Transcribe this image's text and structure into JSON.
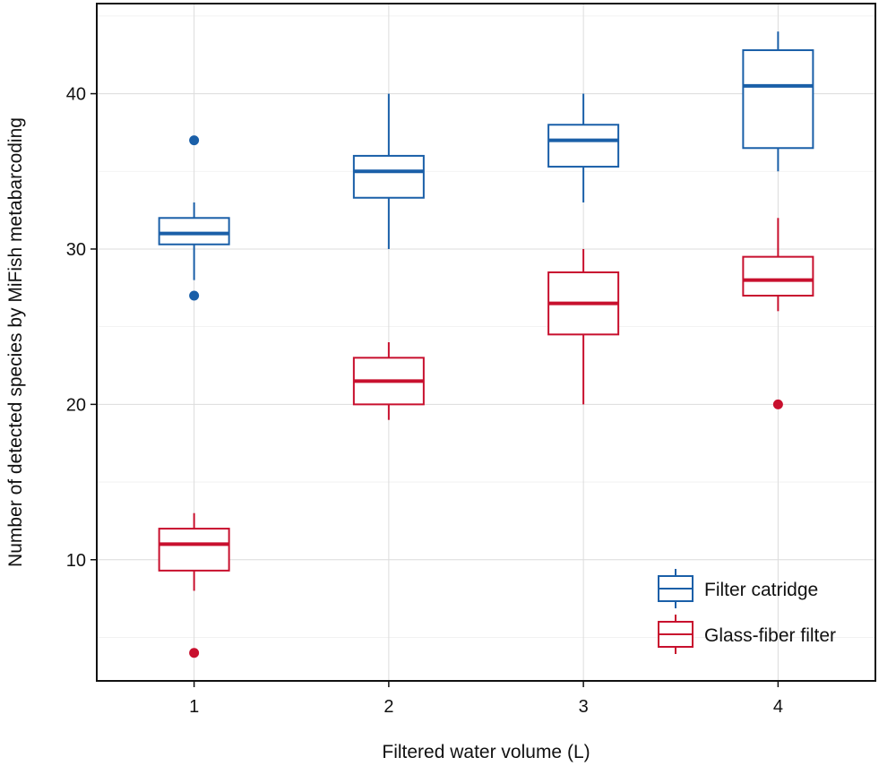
{
  "chart_data": {
    "type": "box",
    "xlabel": "Filtered water volume (L)",
    "ylabel": "Number of detected species by MiFish metabarcoding",
    "categories": [
      "1",
      "2",
      "3",
      "4"
    ],
    "ylim": [
      2.2,
      45.8
    ],
    "yticks": [
      10,
      20,
      30,
      40
    ],
    "grid": true,
    "legend_position": "bottom-right",
    "series": [
      {
        "name": "Filter catridge",
        "color": "#1a5fa8",
        "boxes": [
          {
            "x": "1",
            "whisker_low": 28,
            "q1": 30.3,
            "median": 31,
            "q3": 32,
            "whisker_high": 33,
            "outliers": [
              37,
              27
            ]
          },
          {
            "x": "2",
            "whisker_low": 30,
            "q1": 33.3,
            "median": 35,
            "q3": 36,
            "whisker_high": 40,
            "outliers": []
          },
          {
            "x": "3",
            "whisker_low": 33,
            "q1": 35.3,
            "median": 37,
            "q3": 38,
            "whisker_high": 40,
            "outliers": []
          },
          {
            "x": "4",
            "whisker_low": 35,
            "q1": 36.5,
            "median": 40.5,
            "q3": 42.8,
            "whisker_high": 44,
            "outliers": []
          }
        ]
      },
      {
        "name": "Glass-fiber filter",
        "color": "#c8102e",
        "boxes": [
          {
            "x": "1",
            "whisker_low": 8,
            "q1": 9.3,
            "median": 11,
            "q3": 12,
            "whisker_high": 13,
            "outliers": [
              4
            ]
          },
          {
            "x": "2",
            "whisker_low": 19,
            "q1": 20,
            "median": 21.5,
            "q3": 23,
            "whisker_high": 24,
            "outliers": []
          },
          {
            "x": "3",
            "whisker_low": 20,
            "q1": 24.5,
            "median": 26.5,
            "q3": 28.5,
            "whisker_high": 30,
            "outliers": []
          },
          {
            "x": "4",
            "whisker_low": 26,
            "q1": 27,
            "median": 28,
            "q3": 29.5,
            "whisker_high": 32,
            "outliers": [
              20
            ]
          }
        ]
      }
    ]
  }
}
